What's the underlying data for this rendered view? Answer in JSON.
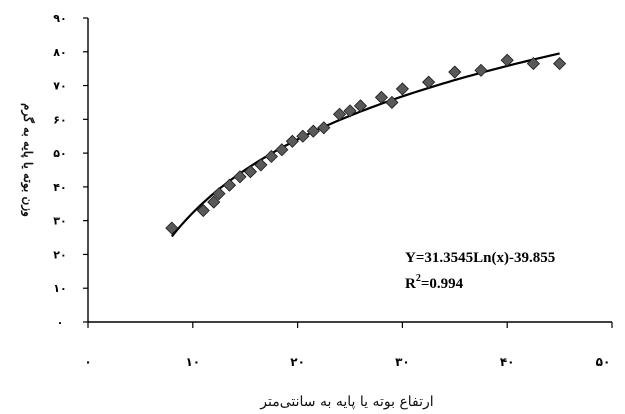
{
  "chart_data": {
    "type": "scatter",
    "xlabel": "ارتفاع بوته یا پایه به سانتی‌متر",
    "ylabel": "وزن بوته یا پایه به گرم",
    "xlim": [
      0,
      50
    ],
    "ylim": [
      0,
      90
    ],
    "x_ticks": [
      0,
      10,
      20,
      30,
      40,
      50
    ],
    "y_ticks": [
      0,
      10,
      20,
      30,
      40,
      50,
      60,
      70,
      80,
      90
    ],
    "x_tick_labels": [
      "۰",
      "۱۰",
      "۲۰",
      "۳۰",
      "۴۰",
      "۵۰"
    ],
    "y_tick_labels": [
      "۰",
      "۱۰",
      "۲۰",
      "۳۰",
      "۴۰",
      "۵۰",
      "۶۰",
      "۷۰",
      "۸۰",
      "۹۰"
    ],
    "grid": false,
    "legend": "none",
    "marker": "diamond",
    "marker_color": "#595959",
    "line_color": "#000000",
    "series": [
      {
        "points": [
          [
            8,
            27.8
          ],
          [
            11,
            33
          ],
          [
            12,
            35.5
          ],
          [
            12.5,
            38
          ],
          [
            13.5,
            40.5
          ],
          [
            14.5,
            43
          ],
          [
            15.5,
            44.5
          ],
          [
            16.5,
            46.5
          ],
          [
            17.5,
            49
          ],
          [
            18.5,
            51
          ],
          [
            19.5,
            53.5
          ],
          [
            20.5,
            55
          ],
          [
            21.5,
            56.5
          ],
          [
            22.5,
            57.5
          ],
          [
            24,
            61.5
          ],
          [
            25,
            62.5
          ],
          [
            26,
            64
          ],
          [
            28,
            66.5
          ],
          [
            29,
            65
          ],
          [
            30,
            69
          ],
          [
            32.5,
            71
          ],
          [
            35,
            74
          ],
          [
            37.5,
            74.5
          ],
          [
            40,
            77.5
          ],
          [
            42.5,
            76.5
          ],
          [
            45,
            76.5
          ]
        ]
      }
    ],
    "trendline": {
      "type": "log",
      "a": 31.3545,
      "b": -39.855,
      "x_range": [
        8,
        45
      ]
    },
    "annotations": {
      "equation": "Y=31.3545Ln(x)-39.855",
      "r2_base": "R",
      "r2_sup": "2",
      "r2_value": "=0.994"
    }
  }
}
